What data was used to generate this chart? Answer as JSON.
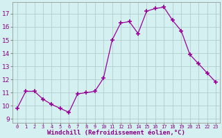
{
  "x": [
    0,
    1,
    2,
    3,
    4,
    5,
    6,
    7,
    8,
    9,
    10,
    11,
    12,
    13,
    14,
    15,
    16,
    17,
    18,
    19,
    20,
    21,
    22,
    23
  ],
  "y": [
    9.8,
    11.1,
    11.1,
    10.5,
    10.1,
    9.8,
    9.5,
    10.9,
    11.0,
    11.1,
    12.1,
    15.0,
    16.3,
    16.4,
    15.5,
    17.2,
    17.4,
    17.5,
    16.5,
    15.7,
    13.9,
    13.2,
    12.5,
    11.8
  ],
  "line_color": "#990099",
  "marker": "+",
  "marker_size": 4,
  "bg_color": "#d5f0f0",
  "grid_color": "#b0cece",
  "xlabel": "Windchill (Refroidissement éolien,°C)",
  "xlabel_color": "#880088",
  "tick_color": "#880088",
  "ylabel_ticks": [
    9,
    10,
    11,
    12,
    13,
    14,
    15,
    16,
    17
  ],
  "xtick_labels": [
    "0",
    "1",
    "2",
    "3",
    "4",
    "5",
    "6",
    "7",
    "8",
    "9",
    "10",
    "11",
    "12",
    "13",
    "14",
    "15",
    "16",
    "17",
    "18",
    "19",
    "20",
    "21",
    "22",
    "23"
  ],
  "ylim": [
    8.7,
    17.9
  ],
  "xlim": [
    -0.5,
    23.5
  ]
}
